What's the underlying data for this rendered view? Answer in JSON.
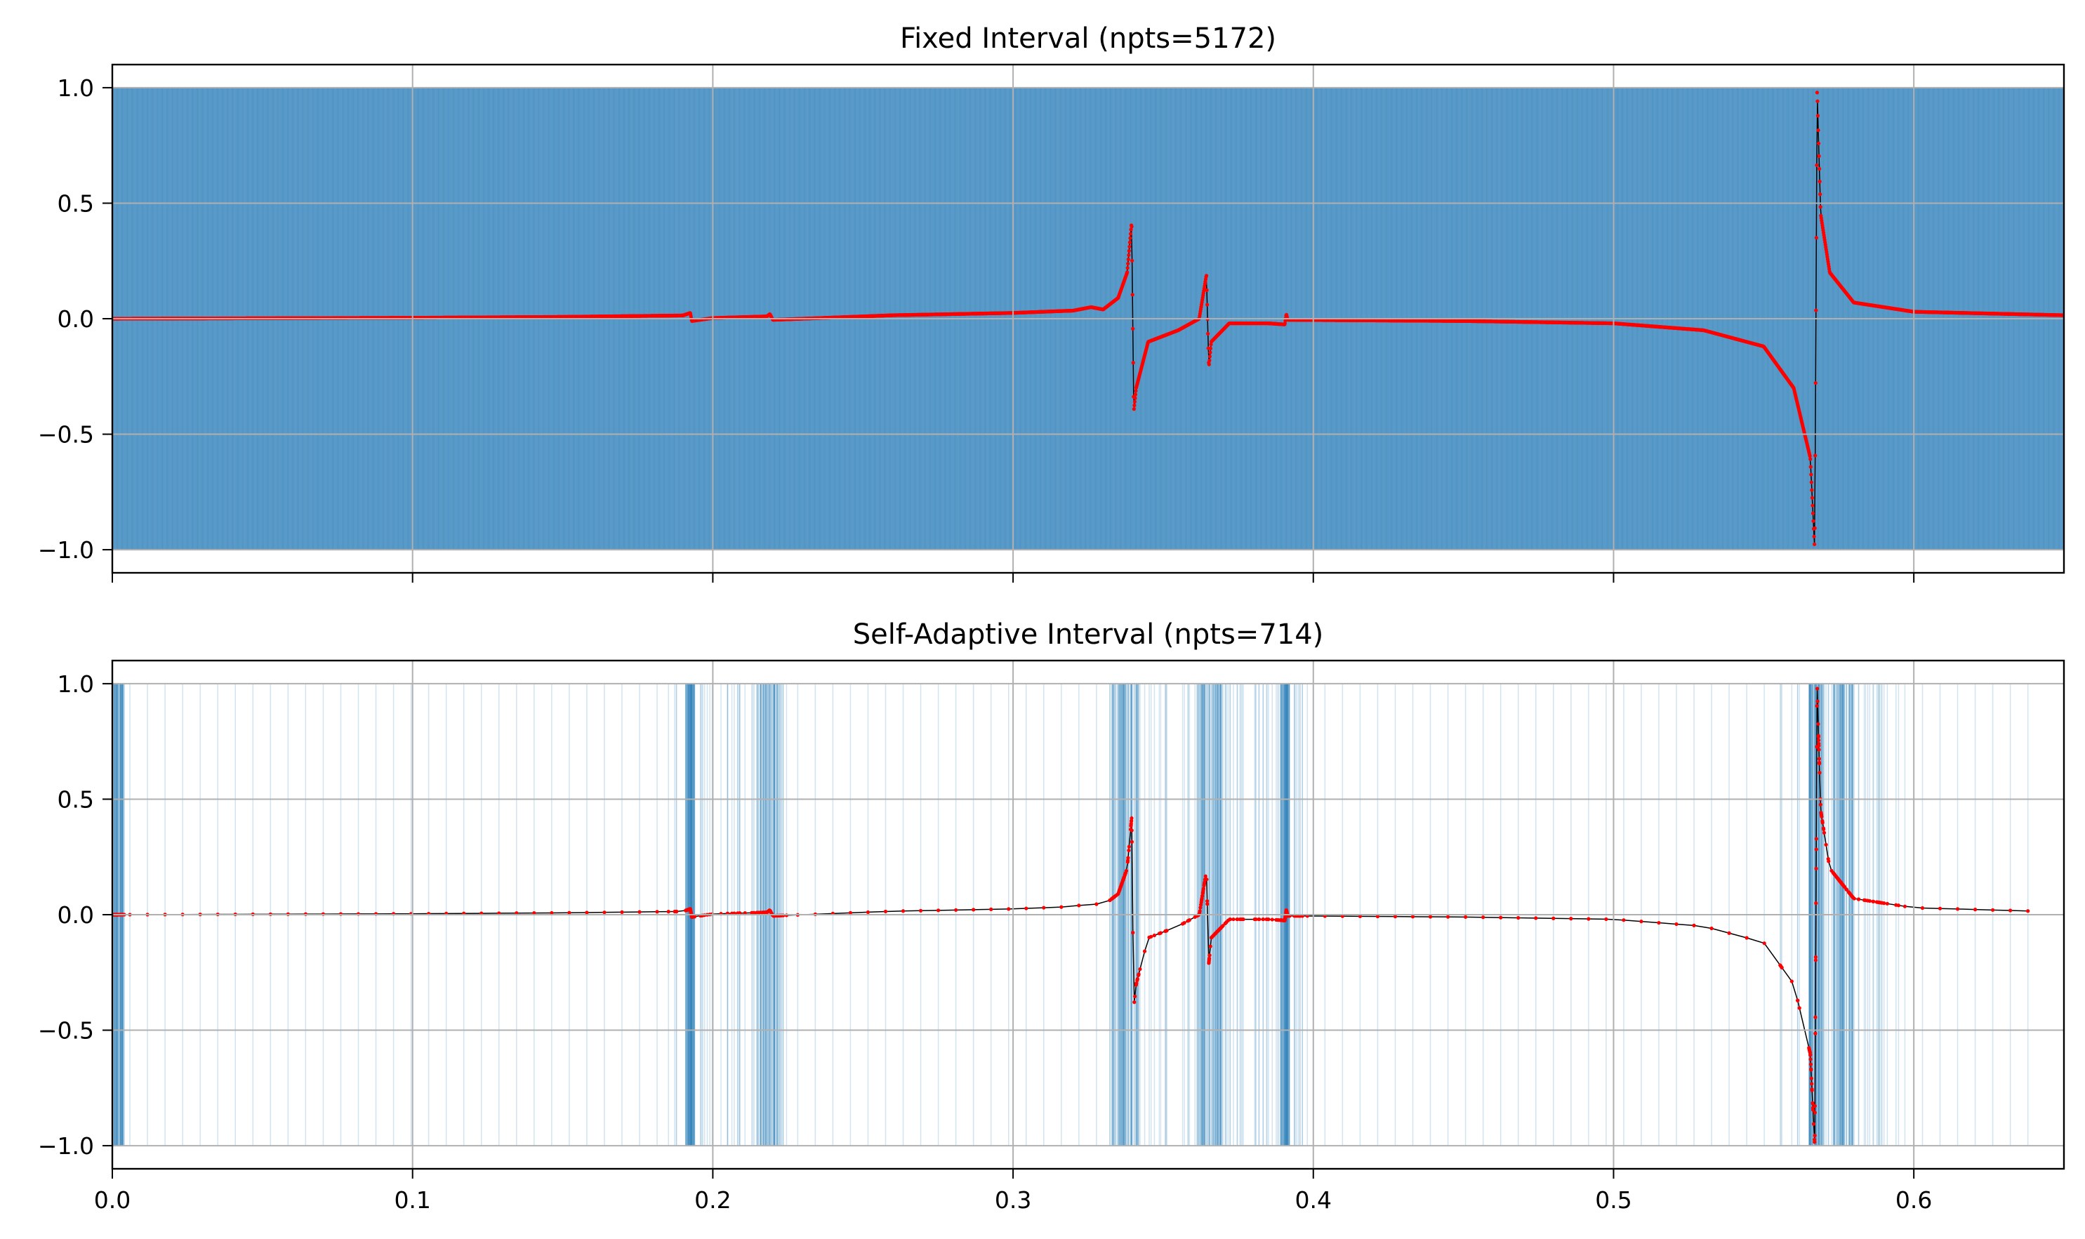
{
  "chart_data": [
    {
      "type": "line",
      "title": "Fixed Interval (npts=5172)",
      "xlabel": "",
      "ylabel": "",
      "xlim": [
        0.0,
        0.65
      ],
      "ylim": [
        -1.1,
        1.1
      ],
      "grid": true,
      "xticks": [
        "",
        "",
        "",
        "",
        "",
        "",
        ""
      ],
      "yticks": [
        "1.0",
        "0.5",
        "0.0",
        "−0.5",
        "−1.0"
      ],
      "sampling": {
        "npts": 5172,
        "x_range": [
          0.0,
          0.65
        ],
        "distribution": "uniform"
      },
      "colors": {
        "vlines": "#1f77b4",
        "points": "#ff0000",
        "curve": "#000000"
      },
      "series": [
        {
          "x": [
            0.0,
            0.05,
            0.1,
            0.15,
            0.19,
            0.1925,
            0.193,
            0.2,
            0.218,
            0.219,
            0.22,
            0.26,
            0.3,
            0.32,
            0.326,
            0.33,
            0.335,
            0.338,
            0.3395,
            0.3402,
            0.341,
            0.345,
            0.355,
            0.362,
            0.3644,
            0.3652,
            0.366,
            0.372,
            0.385,
            0.3905,
            0.391,
            0.3915,
            0.45,
            0.5,
            0.53,
            0.55,
            0.56,
            0.5655,
            0.567,
            0.5678,
            0.5682,
            0.569,
            0.572,
            0.58,
            0.6,
            0.65
          ],
          "y": [
            0.0,
            0.002,
            0.004,
            0.008,
            0.014,
            0.025,
            -0.01,
            0.003,
            0.01,
            0.02,
            -0.005,
            0.015,
            0.025,
            0.035,
            0.05,
            0.04,
            0.09,
            0.2,
            0.42,
            -0.4,
            -0.3,
            -0.1,
            -0.05,
            0.0,
            0.19,
            -0.21,
            -0.1,
            -0.02,
            -0.02,
            -0.025,
            0.02,
            -0.005,
            -0.01,
            -0.02,
            -0.05,
            -0.12,
            -0.3,
            -0.6,
            -1.0,
            1.0,
            0.8,
            0.45,
            0.2,
            0.07,
            0.03,
            0.015
          ]
        }
      ]
    },
    {
      "type": "line",
      "title": "Self-Adaptive Interval (npts=714)",
      "xlabel": "",
      "ylabel": "",
      "xlim": [
        0.0,
        0.65
      ],
      "ylim": [
        -1.1,
        1.1
      ],
      "grid": true,
      "xticks": [
        "0.0",
        "0.1",
        "0.2",
        "0.3",
        "0.4",
        "0.5",
        "0.6"
      ],
      "yticks": [
        "1.0",
        "0.5",
        "0.0",
        "−0.5",
        "−1.0"
      ],
      "sampling": {
        "npts": 714,
        "x_range": [
          0.0,
          0.638
        ],
        "distribution": "adaptive",
        "dense_regions": [
          [
            0.0,
            0.004
          ],
          [
            0.191,
            0.194
          ],
          [
            0.215,
            0.223
          ],
          [
            0.333,
            0.342
          ],
          [
            0.361,
            0.37
          ],
          [
            0.389,
            0.392
          ],
          [
            0.565,
            0.57
          ],
          [
            0.573,
            0.58
          ]
        ]
      },
      "colors": {
        "vlines": "#1f77b4",
        "points": "#ff0000",
        "curve": "#000000"
      },
      "series": [
        {
          "x": [
            0.0,
            0.05,
            0.1,
            0.15,
            0.19,
            0.1925,
            0.193,
            0.2,
            0.218,
            0.219,
            0.22,
            0.26,
            0.3,
            0.32,
            0.326,
            0.33,
            0.335,
            0.338,
            0.3395,
            0.3402,
            0.341,
            0.345,
            0.355,
            0.362,
            0.3644,
            0.3652,
            0.366,
            0.372,
            0.385,
            0.3905,
            0.391,
            0.3915,
            0.45,
            0.5,
            0.53,
            0.55,
            0.56,
            0.5655,
            0.567,
            0.5678,
            0.5682,
            0.569,
            0.572,
            0.58,
            0.6,
            0.638
          ],
          "y": [
            0.0,
            0.002,
            0.004,
            0.008,
            0.014,
            0.025,
            -0.01,
            0.003,
            0.01,
            0.02,
            -0.005,
            0.015,
            0.025,
            0.035,
            0.05,
            0.04,
            0.09,
            0.2,
            0.42,
            -0.4,
            -0.3,
            -0.1,
            -0.05,
            0.0,
            0.19,
            -0.21,
            -0.1,
            -0.02,
            -0.02,
            -0.025,
            0.02,
            -0.005,
            -0.01,
            -0.02,
            -0.05,
            -0.12,
            -0.3,
            -0.6,
            -1.0,
            1.0,
            0.8,
            0.45,
            0.2,
            0.07,
            0.03,
            0.016
          ]
        }
      ]
    }
  ]
}
